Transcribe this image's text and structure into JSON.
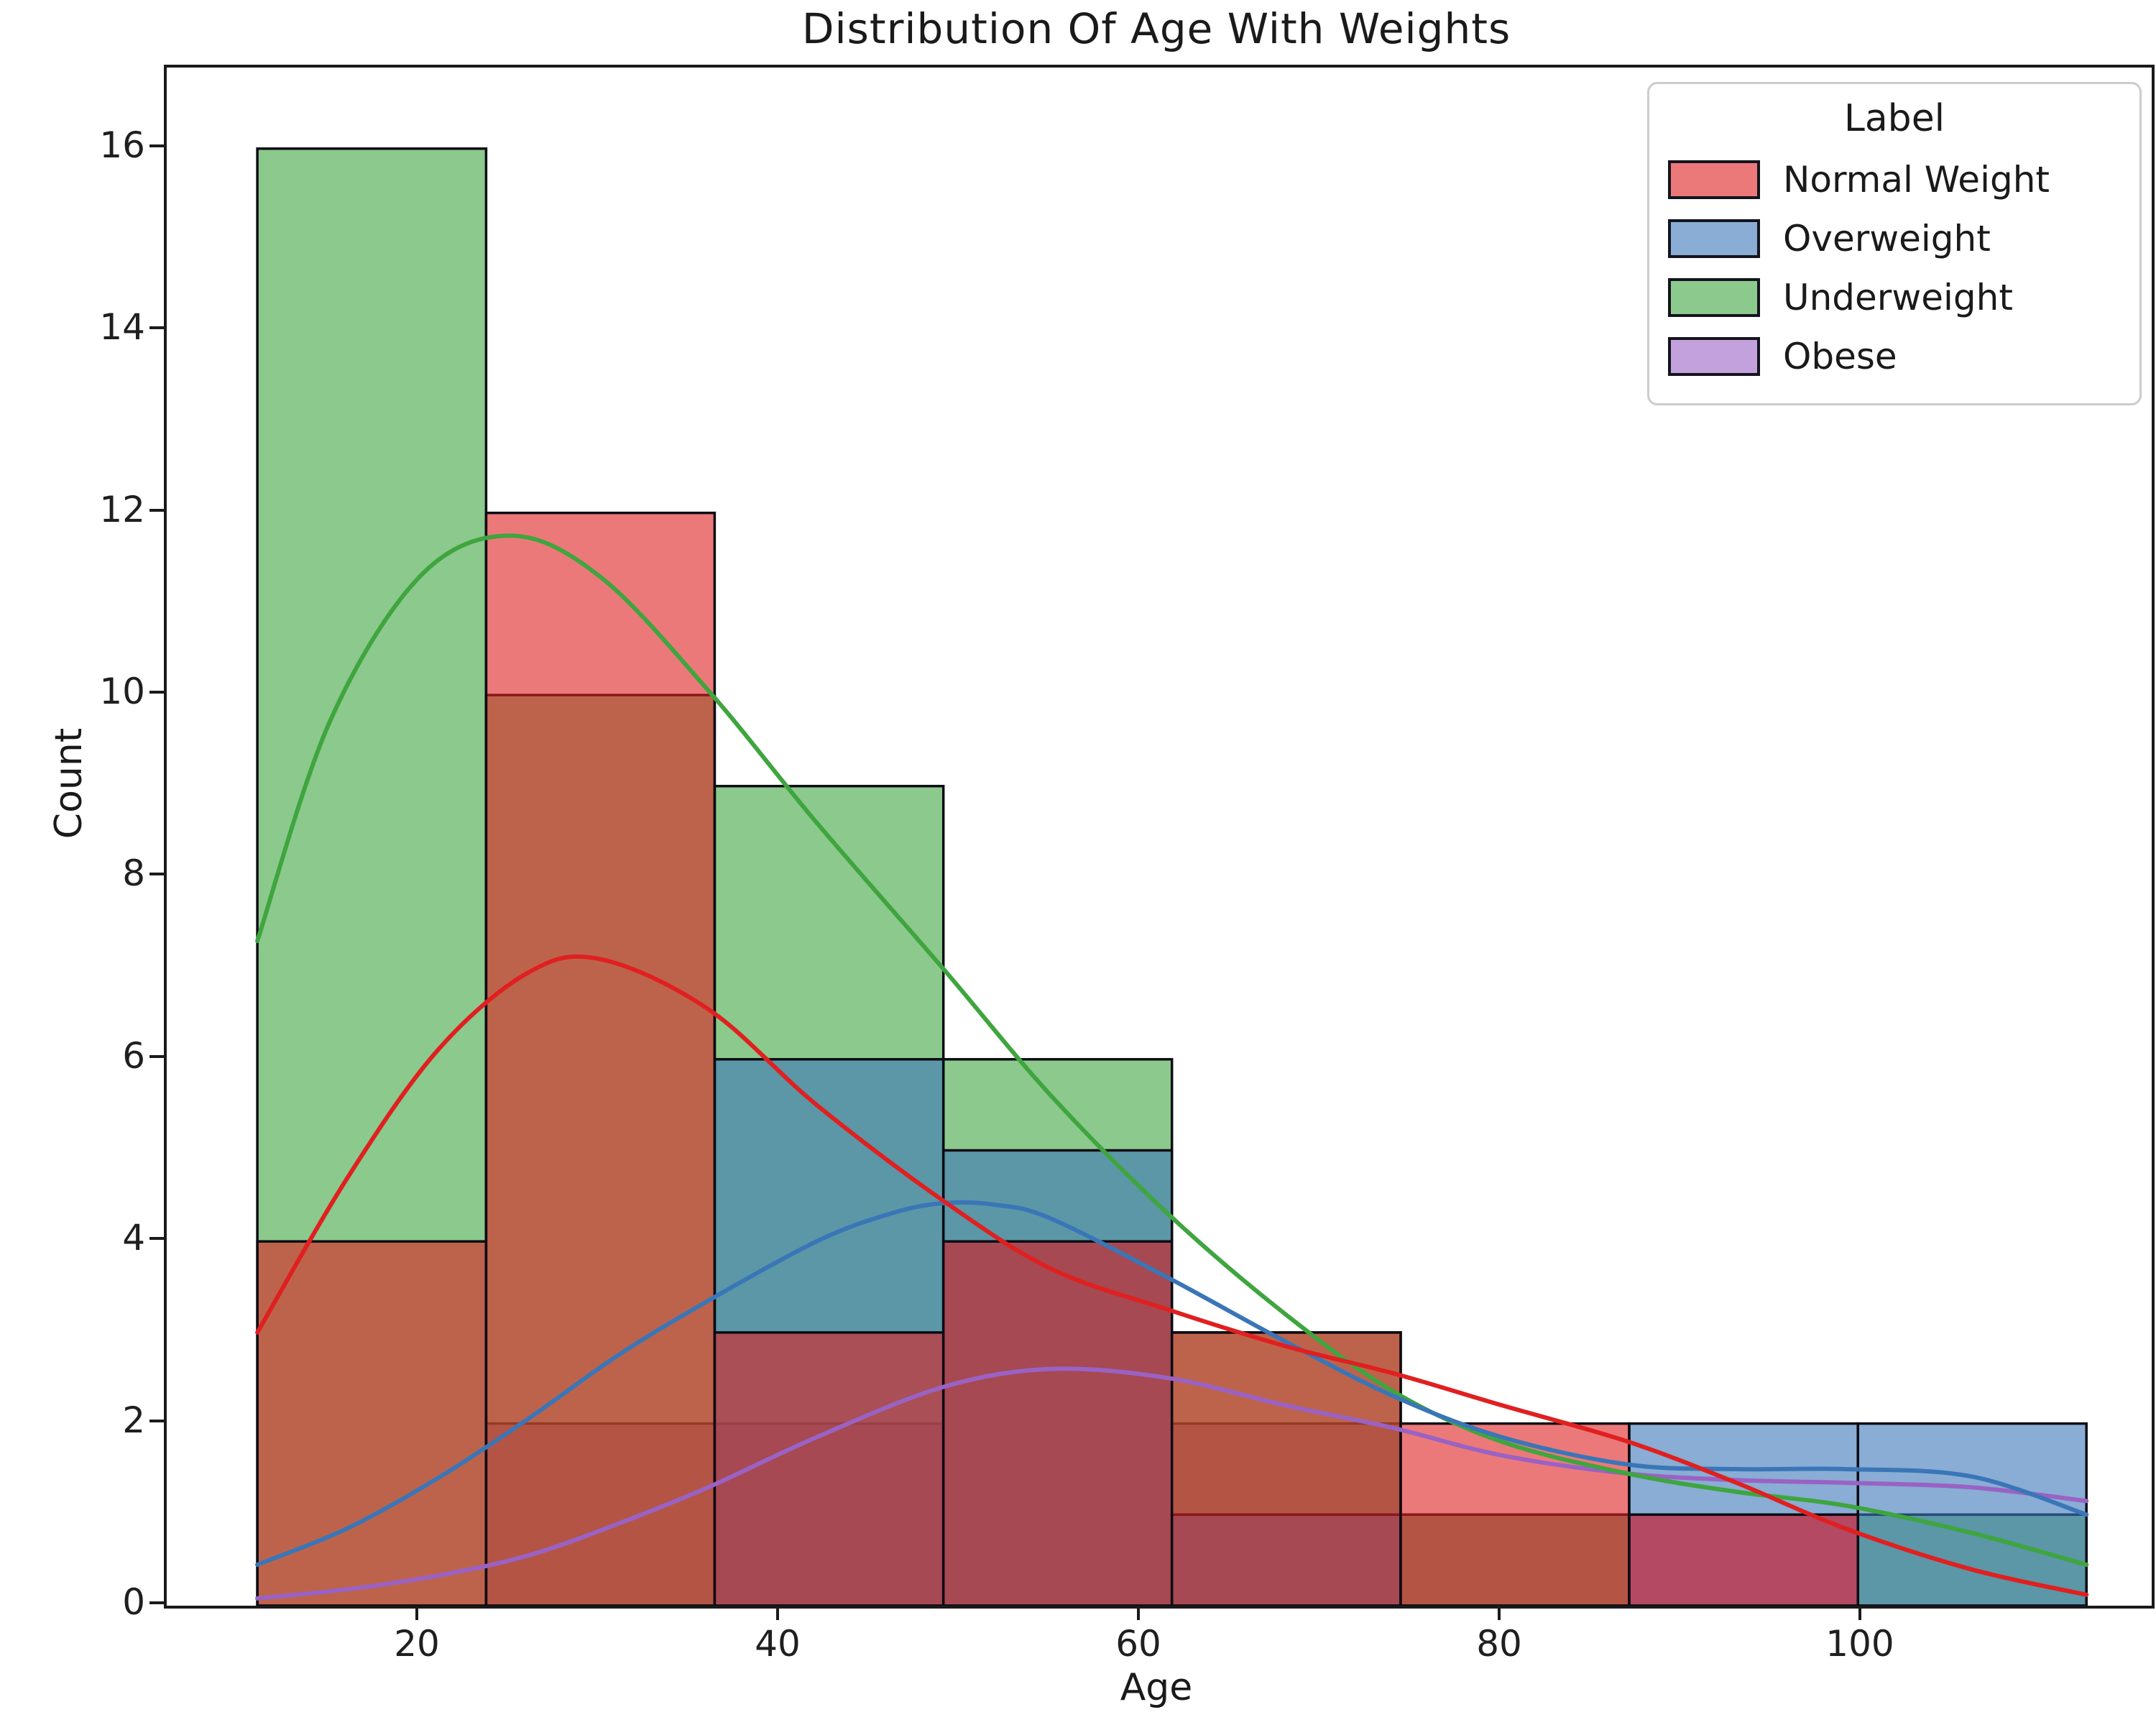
{
  "title": "Distribution Of Age With Weights",
  "axes": {
    "xlabel": "Age",
    "ylabel": "Count",
    "x_ticks": [
      20,
      40,
      60,
      80,
      100
    ],
    "y_ticks": [
      0,
      2,
      4,
      6,
      8,
      10,
      12,
      14,
      16
    ],
    "x_range_age": [
      6.0,
      116.0
    ],
    "y_range_count": [
      0,
      16.9
    ],
    "grid": false
  },
  "legend": {
    "title": "Label",
    "position": "upper right",
    "entries": [
      {
        "label": "Normal Weight",
        "color": "#e02020"
      },
      {
        "label": "Overweight",
        "color": "#3a76b7"
      },
      {
        "label": "Underweight",
        "color": "#3fa53f"
      },
      {
        "label": "Obese",
        "color": "#9a62c4"
      }
    ]
  },
  "chart_data": {
    "type": "bar",
    "subtype": "layered-histogram-with-kde",
    "stat": "count",
    "title": "Distribution Of Age With Weights",
    "xlabel": "Age",
    "ylabel": "Count",
    "ylim": [
      0,
      16.9
    ],
    "bar_alpha": 0.6,
    "bar_edge_color": "#0c0c14",
    "draw_order": "reversed-legend-order",
    "bin_edges": [
      11.0,
      23.68,
      36.35,
      49.03,
      61.7,
      74.38,
      87.05,
      99.73,
      112.4
    ],
    "series": [
      {
        "name": "Normal Weight",
        "color": "#e02020",
        "counts": [
          4,
          12,
          3,
          4,
          3,
          2,
          1,
          0
        ],
        "kde_points": [
          [
            11,
            3.0
          ],
          [
            16,
            4.7
          ],
          [
            21,
            6.1
          ],
          [
            26,
            6.95
          ],
          [
            30,
            7.1
          ],
          [
            36,
            6.55
          ],
          [
            42,
            5.5
          ],
          [
            49,
            4.45
          ],
          [
            55,
            3.7
          ],
          [
            61.5,
            3.25
          ],
          [
            68,
            2.85
          ],
          [
            74,
            2.55
          ],
          [
            80,
            2.2
          ],
          [
            87,
            1.8
          ],
          [
            93,
            1.35
          ],
          [
            99,
            0.85
          ],
          [
            106,
            0.4
          ],
          [
            112.4,
            0.12
          ]
        ]
      },
      {
        "name": "Overweight",
        "color": "#3a76b7",
        "counts": [
          0,
          0,
          6,
          5,
          1,
          0,
          2,
          2
        ],
        "kde_points": [
          [
            11,
            0.45
          ],
          [
            16,
            0.85
          ],
          [
            21,
            1.4
          ],
          [
            26,
            2.05
          ],
          [
            31,
            2.75
          ],
          [
            36,
            3.35
          ],
          [
            42,
            4.0
          ],
          [
            46,
            4.3
          ],
          [
            49,
            4.42
          ],
          [
            52,
            4.4
          ],
          [
            55,
            4.25
          ],
          [
            61.5,
            3.6
          ],
          [
            68,
            2.9
          ],
          [
            74,
            2.3
          ],
          [
            80,
            1.85
          ],
          [
            87,
            1.55
          ],
          [
            93,
            1.5
          ],
          [
            99,
            1.5
          ],
          [
            106,
            1.42
          ],
          [
            112.4,
            1.0
          ]
        ]
      },
      {
        "name": "Underweight",
        "color": "#3fa53f",
        "counts": [
          16,
          10,
          9,
          6,
          3,
          1,
          0,
          1
        ],
        "kde_points": [
          [
            11,
            7.3
          ],
          [
            15,
            9.7
          ],
          [
            20,
            11.3
          ],
          [
            25,
            11.75
          ],
          [
            30,
            11.3
          ],
          [
            36,
            10.05
          ],
          [
            42,
            8.6
          ],
          [
            49,
            7.0
          ],
          [
            55,
            5.6
          ],
          [
            61.5,
            4.3
          ],
          [
            68,
            3.2
          ],
          [
            74,
            2.35
          ],
          [
            80,
            1.8
          ],
          [
            87,
            1.45
          ],
          [
            93,
            1.25
          ],
          [
            99,
            1.1
          ],
          [
            106,
            0.8
          ],
          [
            112.4,
            0.45
          ]
        ]
      },
      {
        "name": "Obese",
        "color": "#9a62c4",
        "counts": [
          0,
          2,
          2,
          4,
          2,
          1,
          1,
          0
        ],
        "kde_points": [
          [
            11,
            0.08
          ],
          [
            16,
            0.18
          ],
          [
            21,
            0.33
          ],
          [
            26,
            0.55
          ],
          [
            31,
            0.9
          ],
          [
            36,
            1.3
          ],
          [
            42,
            1.85
          ],
          [
            49,
            2.4
          ],
          [
            55,
            2.6
          ],
          [
            61.5,
            2.5
          ],
          [
            68,
            2.2
          ],
          [
            74,
            1.95
          ],
          [
            80,
            1.65
          ],
          [
            87,
            1.45
          ],
          [
            93,
            1.38
          ],
          [
            99,
            1.35
          ],
          [
            106,
            1.3
          ],
          [
            112.4,
            1.15
          ]
        ]
      }
    ]
  }
}
